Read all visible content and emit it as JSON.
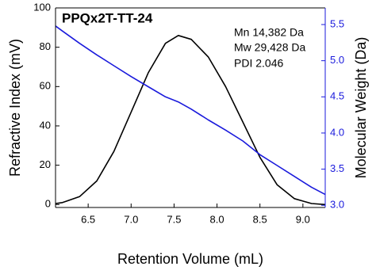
{
  "chart_data": {
    "type": "line",
    "title": "PPQx2T-TT-24",
    "annotations": [
      "Mn 14,382 Da",
      "Mw 29,428 Da",
      "PDI 2.046"
    ],
    "x_label": "Retention Volume (mL)",
    "y_label": "Refractive Index (mV)",
    "y2_label": "Molecular Weight (Da)",
    "x": [
      6.12,
      6.2,
      6.4,
      6.6,
      6.8,
      7.0,
      7.2,
      7.4,
      7.55,
      7.7,
      7.9,
      8.1,
      8.3,
      8.5,
      8.7,
      8.9,
      9.1,
      9.26
    ],
    "series": [
      {
        "color": "#000000",
        "values": [
          0.5,
          1,
          4,
          12,
          27,
          47,
          67,
          82,
          86,
          84,
          75,
          60,
          42,
          24,
          10,
          3,
          0.5,
          0
        ]
      },
      {
        "color": "#1a1adc",
        "axis": "y2",
        "values": [
          5.48,
          5.41,
          5.24,
          5.08,
          4.93,
          4.78,
          4.64,
          4.5,
          4.43,
          4.33,
          4.18,
          4.04,
          3.89,
          3.7,
          3.55,
          3.4,
          3.25,
          3.15
        ]
      }
    ],
    "xlim": [
      6.12,
      9.26
    ],
    "xticks": [
      6.5,
      {
        "value": 7,
        "label": "7.0"
      },
      7.5,
      {
        "value": 8,
        "label": "8.0"
      },
      8.5,
      {
        "value": 9,
        "label": "9.0"
      }
    ],
    "ylim": [
      -1.5,
      100
    ],
    "yticks": [
      0,
      20,
      40,
      60,
      80,
      100
    ],
    "y2lim": [
      2.97,
      5.73
    ],
    "y2ticks": [
      {
        "value": 3,
        "label": "3.0"
      },
      3.5,
      {
        "value": 4,
        "label": "4.0"
      },
      4.5,
      {
        "value": 5,
        "label": "5.0"
      },
      5.5
    ]
  }
}
